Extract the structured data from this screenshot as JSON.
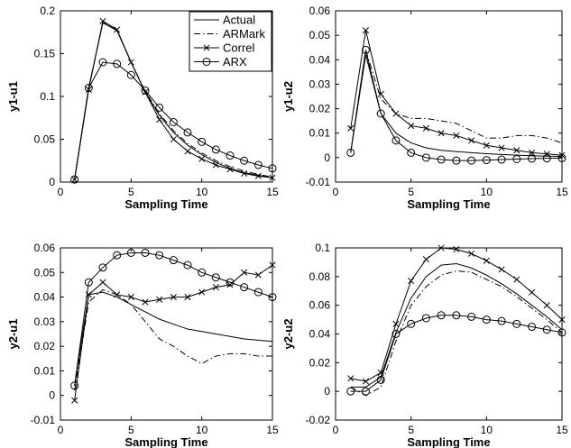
{
  "legend": {
    "placement": "top-right",
    "entries": [
      {
        "label": "Actual",
        "style": "solid",
        "marker": "none"
      },
      {
        "label": "ARMark",
        "style": "dashdot",
        "marker": "none"
      },
      {
        "label": "Correl",
        "style": "solid",
        "marker": "x"
      },
      {
        "label": "ARX",
        "style": "solid",
        "marker": "o"
      }
    ]
  },
  "chart_data": [
    {
      "type": "line",
      "xlabel": "Sampling Time",
      "ylabel": "y1-u1",
      "xlim": [
        0,
        15
      ],
      "ylim": [
        0,
        0.2
      ],
      "xticks": [
        "0",
        "5",
        "10",
        "15"
      ],
      "yticks": [
        "0",
        "0.05",
        "0.1",
        "0.15",
        "0.2"
      ],
      "grid": false,
      "x": [
        1,
        2,
        3,
        4,
        5,
        6,
        7,
        8,
        9,
        10,
        11,
        12,
        13,
        14,
        15
      ],
      "series": [
        {
          "name": "Actual",
          "values": [
            0.003,
            0.11,
            0.186,
            0.177,
            0.14,
            0.105,
            0.078,
            0.058,
            0.043,
            0.032,
            0.023,
            0.016,
            0.011,
            0.008,
            0.005
          ]
        },
        {
          "name": "ARMark",
          "values": [
            0.003,
            0.11,
            0.186,
            0.177,
            0.14,
            0.106,
            0.08,
            0.06,
            0.045,
            0.034,
            0.025,
            0.018,
            0.013,
            0.009,
            0.006
          ]
        },
        {
          "name": "Correl",
          "values": [
            0.003,
            0.108,
            0.188,
            0.178,
            0.14,
            0.105,
            0.073,
            0.05,
            0.036,
            0.027,
            0.02,
            0.015,
            0.01,
            0.007,
            0.005
          ]
        },
        {
          "name": "ARX",
          "values": [
            0.003,
            0.11,
            0.14,
            0.138,
            0.125,
            0.107,
            0.087,
            0.07,
            0.058,
            0.047,
            0.038,
            0.031,
            0.025,
            0.02,
            0.016
          ]
        }
      ]
    },
    {
      "type": "line",
      "xlabel": "Sampling Time",
      "ylabel": "y1-u2",
      "xlim": [
        0,
        15
      ],
      "ylim": [
        -0.01,
        0.06
      ],
      "xticks": [
        "0",
        "5",
        "10",
        "15"
      ],
      "yticks": [
        "-0.01",
        "0",
        "0.01",
        "0.02",
        "0.03",
        "0.04",
        "0.05",
        "0.06"
      ],
      "grid": false,
      "x": [
        1,
        2,
        3,
        4,
        5,
        6,
        7,
        8,
        9,
        10,
        11,
        12,
        13,
        14,
        15
      ],
      "series": [
        {
          "name": "Actual",
          "values": [
            0.002,
            0.042,
            0.018,
            0.01,
            0.006,
            0.004,
            0.003,
            0.0025,
            0.002,
            0.0016,
            0.0013,
            0.001,
            0.0008,
            0.0006,
            0.0005
          ]
        },
        {
          "name": "ARMark",
          "values": [
            0.002,
            0.044,
            0.024,
            0.018,
            0.016,
            0.016,
            0.015,
            0.014,
            0.011,
            0.008,
            0.008,
            0.009,
            0.009,
            0.008,
            0.006
          ]
        },
        {
          "name": "Correl",
          "values": [
            0.012,
            0.052,
            0.026,
            0.018,
            0.013,
            0.012,
            0.01,
            0.009,
            0.007,
            0.005,
            0.004,
            0.003,
            0.002,
            0.0015,
            0.001
          ]
        },
        {
          "name": "ARX",
          "values": [
            0.002,
            0.044,
            0.018,
            0.007,
            0.002,
            0.0,
            -0.0008,
            -0.0012,
            -0.0012,
            -0.001,
            -0.0008,
            -0.0006,
            -0.0004,
            -0.0003,
            -0.0002
          ]
        }
      ]
    },
    {
      "type": "line",
      "xlabel": "Sampling Time",
      "ylabel": "y2-u1",
      "xlim": [
        0,
        15
      ],
      "ylim": [
        -0.01,
        0.06
      ],
      "xticks": [
        "0",
        "5",
        "10",
        "15"
      ],
      "yticks": [
        "-0.01",
        "0",
        "0.01",
        "0.02",
        "0.03",
        "0.04",
        "0.05",
        "0.06"
      ],
      "grid": false,
      "x": [
        1,
        2,
        3,
        4,
        5,
        6,
        7,
        8,
        9,
        10,
        11,
        12,
        13,
        14,
        15
      ],
      "series": [
        {
          "name": "Actual",
          "values": [
            0.004,
            0.041,
            0.042,
            0.04,
            0.037,
            0.034,
            0.031,
            0.029,
            0.027,
            0.026,
            0.025,
            0.024,
            0.023,
            0.0225,
            0.022
          ]
        },
        {
          "name": "ARMark",
          "values": [
            0.002,
            0.038,
            0.043,
            0.041,
            0.037,
            0.03,
            0.023,
            0.02,
            0.016,
            0.013,
            0.016,
            0.017,
            0.017,
            0.016,
            0.016
          ]
        },
        {
          "name": "Correl",
          "values": [
            -0.002,
            0.041,
            0.046,
            0.041,
            0.04,
            0.038,
            0.039,
            0.04,
            0.04,
            0.042,
            0.044,
            0.045,
            0.05,
            0.049,
            0.053
          ]
        },
        {
          "name": "ARX",
          "values": [
            0.004,
            0.046,
            0.052,
            0.057,
            0.058,
            0.058,
            0.057,
            0.055,
            0.053,
            0.05,
            0.048,
            0.046,
            0.044,
            0.042,
            0.04
          ]
        }
      ]
    },
    {
      "type": "line",
      "xlabel": "Sampling Time",
      "ylabel": "y2-u2",
      "xlim": [
        0,
        15
      ],
      "ylim": [
        -0.02,
        0.1
      ],
      "xticks": [
        "0",
        "5",
        "10",
        "15"
      ],
      "yticks": [
        "-0.02",
        "0",
        "0.02",
        "0.04",
        "0.06",
        "0.08",
        "0.1"
      ],
      "grid": false,
      "x": [
        1,
        2,
        3,
        4,
        5,
        6,
        7,
        8,
        9,
        10,
        11,
        12,
        13,
        14,
        15
      ],
      "series": [
        {
          "name": "Actual",
          "values": [
            0.003,
            0.003,
            0.01,
            0.041,
            0.065,
            0.08,
            0.088,
            0.089,
            0.086,
            0.081,
            0.075,
            0.068,
            0.06,
            0.052,
            0.043
          ]
        },
        {
          "name": "ARMark",
          "values": [
            0.003,
            -0.003,
            0.003,
            0.035,
            0.06,
            0.073,
            0.081,
            0.084,
            0.083,
            0.078,
            0.073,
            0.066,
            0.058,
            0.05,
            0.041
          ]
        },
        {
          "name": "Correl",
          "values": [
            0.009,
            0.007,
            0.013,
            0.047,
            0.077,
            0.092,
            0.1,
            0.099,
            0.096,
            0.091,
            0.085,
            0.078,
            0.069,
            0.06,
            0.05
          ]
        },
        {
          "name": "ARX",
          "values": [
            0.0,
            0.0,
            0.008,
            0.04,
            0.047,
            0.051,
            0.053,
            0.053,
            0.052,
            0.05,
            0.049,
            0.047,
            0.045,
            0.043,
            0.041
          ]
        }
      ]
    }
  ]
}
